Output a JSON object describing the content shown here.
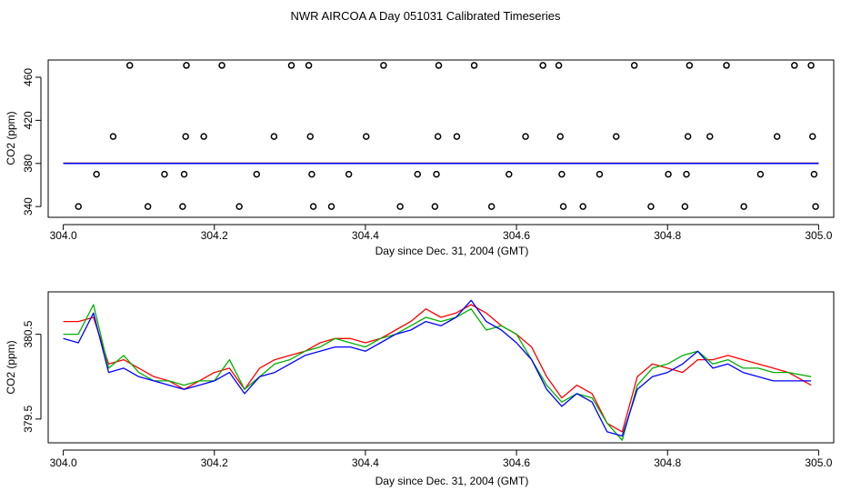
{
  "title": "NWR AIRCOA A  Day 051031  Calibrated Timeseries",
  "colors": {
    "series1": "#ff0000",
    "series2": "#00b000",
    "series3": "#0000ff",
    "axis": "#000000"
  },
  "chart_data": [
    {
      "type": "scatter",
      "xlabel": "Day since Dec. 31, 2004 (GMT)",
      "ylabel": "CO2 (ppm)",
      "xlim": [
        303.98,
        305.02
      ],
      "ylim": [
        330,
        476
      ],
      "xticks": [
        304.0,
        304.2,
        304.4,
        304.6,
        304.8,
        305.0
      ],
      "xtick_labels": [
        "304.0",
        "304.2",
        "304.4",
        "304.6",
        "304.8",
        "305.0"
      ],
      "yticks": [
        340,
        380,
        420,
        460
      ],
      "ytick_labels": [
        "340",
        "380",
        "420",
        "460"
      ],
      "points": [
        {
          "x": 304.02,
          "y": 340
        },
        {
          "x": 304.044,
          "y": 370
        },
        {
          "x": 304.066,
          "y": 405
        },
        {
          "x": 304.088,
          "y": 471
        },
        {
          "x": 304.112,
          "y": 340
        },
        {
          "x": 304.134,
          "y": 370
        },
        {
          "x": 304.158,
          "y": 340
        },
        {
          "x": 304.16,
          "y": 370
        },
        {
          "x": 304.162,
          "y": 405
        },
        {
          "x": 304.163,
          "y": 471
        },
        {
          "x": 304.186,
          "y": 405
        },
        {
          "x": 304.21,
          "y": 471
        },
        {
          "x": 304.233,
          "y": 340
        },
        {
          "x": 304.256,
          "y": 370
        },
        {
          "x": 304.279,
          "y": 405
        },
        {
          "x": 304.302,
          "y": 471
        },
        {
          "x": 304.325,
          "y": 471
        },
        {
          "x": 304.327,
          "y": 405
        },
        {
          "x": 304.329,
          "y": 370
        },
        {
          "x": 304.331,
          "y": 340
        },
        {
          "x": 304.355,
          "y": 340
        },
        {
          "x": 304.378,
          "y": 370
        },
        {
          "x": 304.401,
          "y": 405
        },
        {
          "x": 304.424,
          "y": 471
        },
        {
          "x": 304.446,
          "y": 340
        },
        {
          "x": 304.469,
          "y": 370
        },
        {
          "x": 304.492,
          "y": 340
        },
        {
          "x": 304.494,
          "y": 370
        },
        {
          "x": 304.496,
          "y": 405
        },
        {
          "x": 304.497,
          "y": 471
        },
        {
          "x": 304.521,
          "y": 405
        },
        {
          "x": 304.544,
          "y": 471
        },
        {
          "x": 304.567,
          "y": 340
        },
        {
          "x": 304.59,
          "y": 370
        },
        {
          "x": 304.612,
          "y": 405
        },
        {
          "x": 304.635,
          "y": 471
        },
        {
          "x": 304.656,
          "y": 471
        },
        {
          "x": 304.658,
          "y": 405
        },
        {
          "x": 304.66,
          "y": 370
        },
        {
          "x": 304.662,
          "y": 340
        },
        {
          "x": 304.688,
          "y": 340
        },
        {
          "x": 304.71,
          "y": 370
        },
        {
          "x": 304.732,
          "y": 405
        },
        {
          "x": 304.756,
          "y": 471
        },
        {
          "x": 304.778,
          "y": 340
        },
        {
          "x": 304.801,
          "y": 370
        },
        {
          "x": 304.823,
          "y": 340
        },
        {
          "x": 304.825,
          "y": 370
        },
        {
          "x": 304.827,
          "y": 405
        },
        {
          "x": 304.829,
          "y": 471
        },
        {
          "x": 304.856,
          "y": 405
        },
        {
          "x": 304.878,
          "y": 471
        },
        {
          "x": 304.901,
          "y": 340
        },
        {
          "x": 304.923,
          "y": 370
        },
        {
          "x": 304.945,
          "y": 405
        },
        {
          "x": 304.968,
          "y": 471
        },
        {
          "x": 304.99,
          "y": 471
        },
        {
          "x": 304.992,
          "y": 405
        },
        {
          "x": 304.994,
          "y": 370
        },
        {
          "x": 304.996,
          "y": 340
        }
      ],
      "lines": [
        {
          "name": "red",
          "x": [
            304.0,
            305.0
          ],
          "y": [
            380.2,
            380.2
          ]
        },
        {
          "name": "green",
          "x": [
            304.0,
            305.0
          ],
          "y": [
            380.1,
            380.1
          ]
        },
        {
          "name": "blue",
          "x": [
            304.0,
            305.0
          ],
          "y": [
            380.0,
            380.0
          ]
        }
      ]
    },
    {
      "type": "line",
      "xlabel": "Day since Dec. 31, 2004 (GMT)",
      "ylabel": "CO2 (ppm)",
      "xlim": [
        303.98,
        305.02
      ],
      "ylim": [
        379.22,
        381.0
      ],
      "xticks": [
        304.0,
        304.2,
        304.4,
        304.6,
        304.8,
        305.0
      ],
      "xtick_labels": [
        "304.0",
        "304.2",
        "304.4",
        "304.6",
        "304.8",
        "305.0"
      ],
      "yticks": [
        379.5,
        380.5
      ],
      "ytick_labels": [
        "379.5",
        "380.5"
      ],
      "x": [
        304.0,
        304.02,
        304.04,
        304.06,
        304.08,
        304.1,
        304.12,
        304.14,
        304.16,
        304.18,
        304.2,
        304.22,
        304.24,
        304.26,
        304.28,
        304.3,
        304.32,
        304.34,
        304.36,
        304.38,
        304.4,
        304.42,
        304.44,
        304.46,
        304.48,
        304.5,
        304.52,
        304.54,
        304.56,
        304.58,
        304.6,
        304.62,
        304.64,
        304.66,
        304.68,
        304.7,
        304.72,
        304.74,
        304.76,
        304.78,
        304.8,
        304.82,
        304.84,
        304.86,
        304.88,
        304.9,
        304.92,
        304.94,
        304.96,
        304.99
      ],
      "series": [
        {
          "name": "red",
          "values": [
            380.65,
            380.65,
            380.7,
            380.15,
            380.2,
            380.1,
            380.0,
            379.95,
            379.85,
            379.95,
            380.05,
            380.1,
            379.85,
            380.1,
            380.2,
            380.25,
            380.3,
            380.4,
            380.45,
            380.45,
            380.4,
            380.45,
            380.55,
            380.65,
            380.8,
            380.7,
            380.75,
            380.85,
            380.75,
            380.6,
            380.5,
            380.35,
            380.0,
            379.75,
            379.9,
            379.8,
            379.45,
            379.35,
            380.0,
            380.15,
            380.1,
            380.05,
            380.2,
            380.2,
            380.25,
            380.2,
            380.15,
            380.1,
            380.05,
            379.9
          ]
        },
        {
          "name": "green",
          "values": [
            380.5,
            380.5,
            380.85,
            380.1,
            380.25,
            380.05,
            379.95,
            379.95,
            379.9,
            379.95,
            379.95,
            380.2,
            379.85,
            380.0,
            380.15,
            380.2,
            380.3,
            380.35,
            380.45,
            380.4,
            380.35,
            380.45,
            380.5,
            380.6,
            380.7,
            380.65,
            380.7,
            380.8,
            380.55,
            380.6,
            380.5,
            380.2,
            379.9,
            379.7,
            379.8,
            379.75,
            379.45,
            379.25,
            379.9,
            380.1,
            380.15,
            380.25,
            380.3,
            380.15,
            380.2,
            380.1,
            380.1,
            380.05,
            380.05,
            380.0
          ]
        },
        {
          "name": "blue",
          "values": [
            380.45,
            380.4,
            380.75,
            380.05,
            380.1,
            380.0,
            379.95,
            379.9,
            379.85,
            379.9,
            379.95,
            380.05,
            379.8,
            380.0,
            380.05,
            380.15,
            380.25,
            380.3,
            380.35,
            380.35,
            380.3,
            380.4,
            380.5,
            380.55,
            380.65,
            380.6,
            380.7,
            380.9,
            380.65,
            380.55,
            380.4,
            380.2,
            379.85,
            379.65,
            379.8,
            379.7,
            379.35,
            379.3,
            379.85,
            380.0,
            380.05,
            380.15,
            380.3,
            380.1,
            380.15,
            380.05,
            380.0,
            379.95,
            379.95,
            379.95
          ]
        }
      ]
    }
  ]
}
